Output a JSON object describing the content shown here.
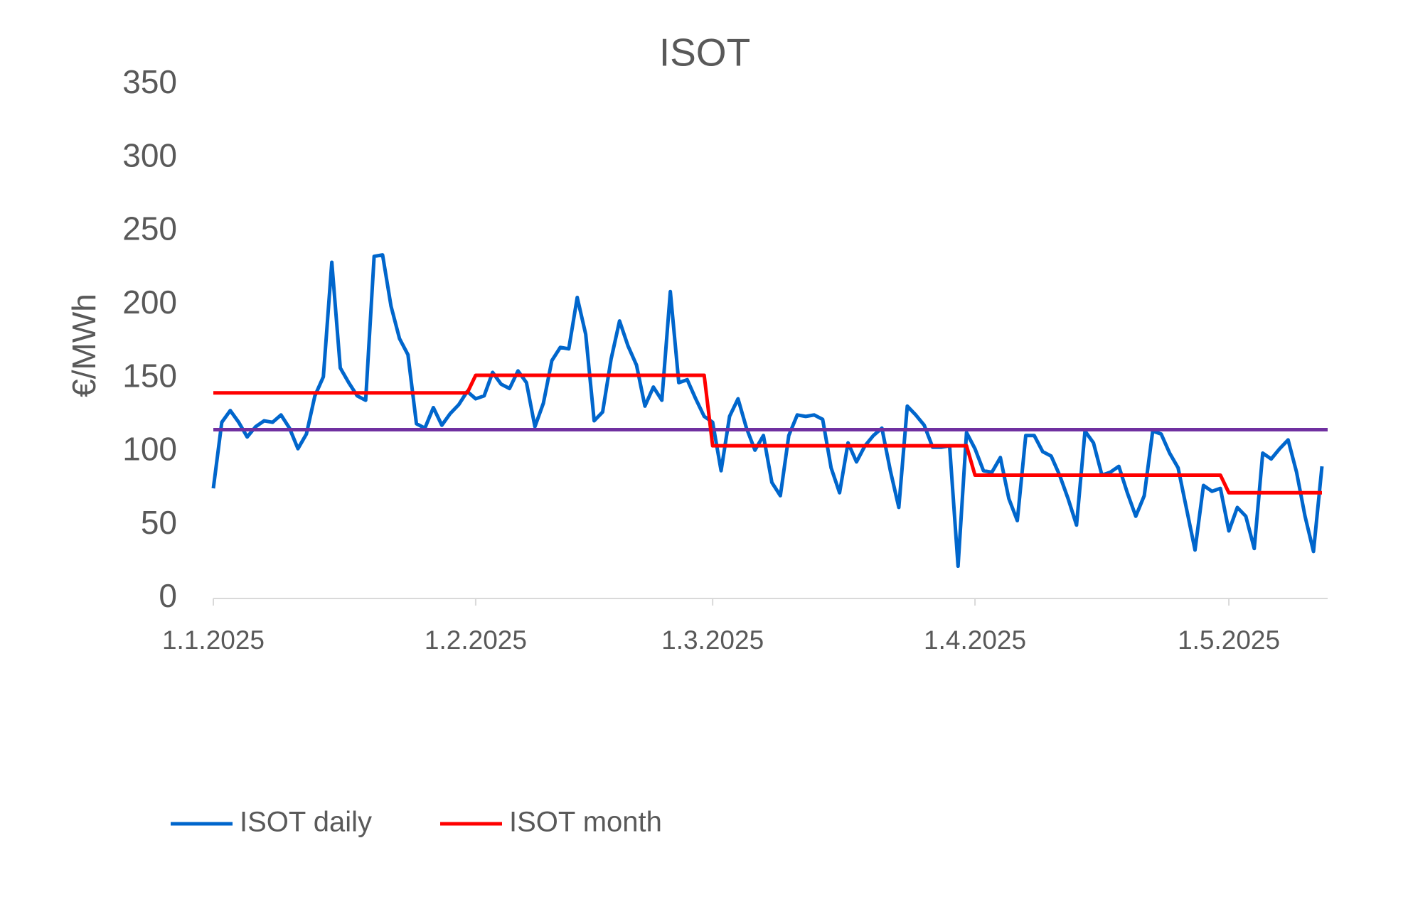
{
  "chart_data": {
    "type": "line",
    "title": "ISOT",
    "y_label": "€/MWh",
    "x": [
      "1.1.2025",
      "2.1.2025",
      "3.1.2025",
      "4.1.2025",
      "5.1.2025",
      "6.1.2025",
      "7.1.2025",
      "8.1.2025",
      "9.1.2025",
      "10.1.2025",
      "11.1.2025",
      "12.1.2025",
      "13.1.2025",
      "14.1.2025",
      "15.1.2025",
      "16.1.2025",
      "17.1.2025",
      "18.1.2025",
      "19.1.2025",
      "20.1.2025",
      "21.1.2025",
      "22.1.2025",
      "23.1.2025",
      "24.1.2025",
      "25.1.2025",
      "26.1.2025",
      "27.1.2025",
      "28.1.2025",
      "29.1.2025",
      "30.1.2025",
      "31.1.2025",
      "1.2.2025",
      "2.2.2025",
      "3.2.2025",
      "4.2.2025",
      "5.2.2025",
      "6.2.2025",
      "7.2.2025",
      "8.2.2025",
      "9.2.2025",
      "10.2.2025",
      "11.2.2025",
      "12.2.2025",
      "13.2.2025",
      "14.2.2025",
      "15.2.2025",
      "16.2.2025",
      "17.2.2025",
      "18.2.2025",
      "19.2.2025",
      "20.2.2025",
      "21.2.2025",
      "22.2.2025",
      "23.2.2025",
      "24.2.2025",
      "25.2.2025",
      "26.2.2025",
      "27.2.2025",
      "28.2.2025",
      "1.3.2025",
      "2.3.2025",
      "3.3.2025",
      "4.3.2025",
      "5.3.2025",
      "6.3.2025",
      "7.3.2025",
      "8.3.2025",
      "9.3.2025",
      "10.3.2025",
      "11.3.2025",
      "12.3.2025",
      "13.3.2025",
      "14.3.2025",
      "15.3.2025",
      "16.3.2025",
      "17.3.2025",
      "18.3.2025",
      "19.3.2025",
      "20.3.2025",
      "21.3.2025",
      "22.3.2025",
      "23.3.2025",
      "24.3.2025",
      "25.3.2025",
      "26.3.2025",
      "27.3.2025",
      "28.3.2025",
      "29.3.2025",
      "30.3.2025",
      "31.3.2025",
      "1.4.2025",
      "2.4.2025",
      "3.4.2025",
      "4.4.2025",
      "5.4.2025",
      "6.4.2025",
      "7.4.2025",
      "8.4.2025",
      "9.4.2025",
      "10.4.2025",
      "11.4.2025",
      "12.4.2025",
      "13.4.2025",
      "14.4.2025",
      "15.4.2025",
      "16.4.2025",
      "17.4.2025",
      "18.4.2025",
      "19.4.2025",
      "20.4.2025",
      "21.4.2025",
      "22.4.2025",
      "23.4.2025",
      "24.4.2025",
      "25.4.2025",
      "26.4.2025",
      "27.4.2025",
      "28.4.2025",
      "29.4.2025",
      "30.4.2025",
      "1.5.2025",
      "2.5.2025",
      "3.5.2025",
      "4.5.2025",
      "5.5.2025",
      "6.5.2025",
      "7.5.2025",
      "8.5.2025",
      "9.5.2025",
      "10.5.2025",
      "11.5.2025",
      "12.5.2025"
    ],
    "series": [
      {
        "name": "ISOT daily",
        "color": "#0066cc",
        "values": [
          75,
          120,
          128,
          120,
          110,
          117,
          121,
          120,
          125,
          116,
          102,
          112,
          138,
          151,
          229,
          157,
          147,
          138,
          135,
          233,
          234,
          199,
          177,
          166,
          119,
          116,
          130,
          118,
          126,
          132,
          141,
          136,
          138,
          154,
          146,
          143,
          155,
          147,
          117,
          133,
          162,
          171,
          170,
          205,
          180,
          121,
          127,
          163,
          189,
          172,
          159,
          131,
          144,
          135,
          209,
          147,
          149,
          136,
          124,
          120,
          87,
          124,
          136,
          116,
          101,
          111,
          79,
          70,
          111,
          125,
          124,
          125,
          122,
          89,
          72,
          106,
          93,
          104,
          111,
          116,
          87,
          62,
          131,
          125,
          118,
          103,
          103,
          104,
          22,
          113,
          102,
          87,
          86,
          96,
          68,
          53,
          111,
          111,
          100,
          97,
          84,
          68,
          50,
          114,
          106,
          84,
          86,
          90,
          72,
          56,
          70,
          114,
          112,
          99,
          89,
          61,
          33,
          77,
          73,
          75,
          46,
          62,
          56,
          34,
          99,
          95,
          102,
          108,
          86,
          56,
          32,
          90
        ]
      },
      {
        "name": "ISOT month",
        "color": "#ff0000",
        "values": [
          140,
          140,
          140,
          140,
          140,
          140,
          140,
          140,
          140,
          140,
          140,
          140,
          140,
          140,
          140,
          140,
          140,
          140,
          140,
          140,
          140,
          140,
          140,
          140,
          140,
          140,
          140,
          140,
          140,
          140,
          140,
          152,
          152,
          152,
          152,
          152,
          152,
          152,
          152,
          152,
          152,
          152,
          152,
          152,
          152,
          152,
          152,
          152,
          152,
          152,
          152,
          152,
          152,
          152,
          152,
          152,
          152,
          152,
          152,
          104,
          104,
          104,
          104,
          104,
          104,
          104,
          104,
          104,
          104,
          104,
          104,
          104,
          104,
          104,
          104,
          104,
          104,
          104,
          104,
          104,
          104,
          104,
          104,
          104,
          104,
          104,
          104,
          104,
          104,
          104,
          84,
          84,
          84,
          84,
          84,
          84,
          84,
          84,
          84,
          84,
          84,
          84,
          84,
          84,
          84,
          84,
          84,
          84,
          84,
          84,
          84,
          84,
          84,
          84,
          84,
          84,
          84,
          84,
          84,
          84,
          72,
          72,
          72,
          72,
          72,
          72,
          72,
          72,
          72,
          72,
          72,
          72
        ]
      }
    ],
    "reference_line": {
      "value": 115,
      "color": "#7030a0"
    },
    "xticks": [
      "1.1.2025",
      "1.2.2025",
      "1.3.2025",
      "1.4.2025",
      "1.5.2025"
    ],
    "ylim": [
      0,
      350
    ],
    "yticks": [
      0,
      50,
      100,
      150,
      200,
      250,
      300,
      350
    ],
    "grid": false,
    "legend": "bottom"
  }
}
